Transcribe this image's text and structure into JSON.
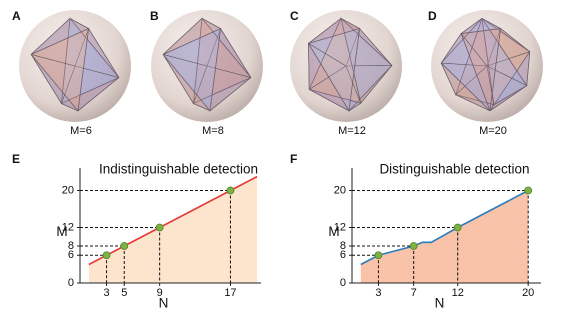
{
  "panels": [
    {
      "label": "A",
      "caption": "M=6"
    },
    {
      "label": "B",
      "caption": "M=8"
    },
    {
      "label": "C",
      "caption": "M=12"
    },
    {
      "label": "D",
      "caption": "M=20"
    }
  ],
  "chart_data": [
    {
      "type": "line",
      "label": "E",
      "title": "Indistinguishable detection",
      "xlabel": "N",
      "ylabel": "M",
      "xlim": [
        0,
        20
      ],
      "ylim": [
        0,
        24
      ],
      "xticks": [
        3,
        5,
        9,
        17
      ],
      "yticks": [
        0,
        6,
        8,
        12,
        20
      ],
      "line": {
        "color": "#e53935",
        "fill": "#fde4cc",
        "x": [
          1,
          20
        ],
        "y": [
          4,
          23
        ]
      },
      "points": {
        "color": "#7cb342",
        "x": [
          3,
          5,
          9,
          17
        ],
        "y": [
          6,
          8,
          12,
          20
        ]
      }
    },
    {
      "type": "line",
      "label": "F",
      "title": "Distinguishable detection",
      "xlabel": "N",
      "ylabel": "M",
      "xlim": [
        0,
        21
      ],
      "ylim": [
        0,
        24
      ],
      "xticks": [
        3,
        7,
        12,
        20
      ],
      "yticks": [
        0,
        6,
        8,
        12,
        20
      ],
      "line": {
        "color": "#2b7bbf",
        "fill": "#f8c3a8",
        "x": [
          1,
          3,
          7,
          8,
          9,
          12,
          20
        ],
        "y": [
          4,
          6,
          8,
          8.8,
          8.8,
          12,
          20
        ]
      },
      "points": {
        "color": "#7cb342",
        "x": [
          3,
          7,
          12,
          20
        ],
        "y": [
          6,
          8,
          12,
          20
        ]
      }
    }
  ]
}
